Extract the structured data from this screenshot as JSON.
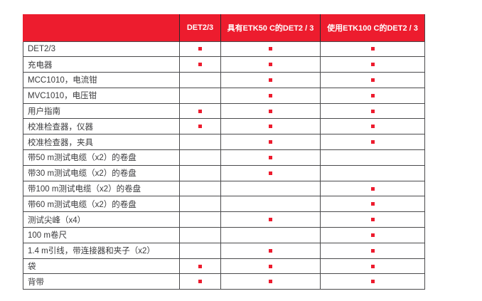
{
  "table": {
    "columns": [
      "",
      "DET2/3",
      "具有ETK50 C的DET2 / 3",
      "使用ETK100 C的DET2 / 3"
    ],
    "rows": [
      {
        "label": "DET2/3",
        "marks": [
          true,
          true,
          true
        ]
      },
      {
        "label": "充电器",
        "marks": [
          true,
          true,
          true
        ]
      },
      {
        "label": "MCC1010，电流钳",
        "marks": [
          false,
          true,
          true
        ]
      },
      {
        "label": "MVC1010，电压钳",
        "marks": [
          false,
          true,
          true
        ]
      },
      {
        "label": "用户指南",
        "marks": [
          true,
          true,
          true
        ]
      },
      {
        "label": "校准检查器，仪器",
        "marks": [
          true,
          true,
          true
        ]
      },
      {
        "label": "校准检查器，夹具",
        "marks": [
          false,
          true,
          true
        ]
      },
      {
        "label": "带50 m测试电缆（x2）的卷盘",
        "marks": [
          false,
          true,
          false
        ]
      },
      {
        "label": "带30 m测试电缆（x2）的卷盘",
        "marks": [
          false,
          true,
          false
        ]
      },
      {
        "label": "带100 m测试电缆（x2）的卷盘",
        "marks": [
          false,
          false,
          true
        ]
      },
      {
        "label": "带60 m测试电缆（x2）的卷盘",
        "marks": [
          false,
          false,
          true
        ]
      },
      {
        "label": "测试尖峰（x4）",
        "marks": [
          false,
          true,
          true
        ]
      },
      {
        "label": "100 m卷尺",
        "marks": [
          false,
          false,
          true
        ]
      },
      {
        "label": "1.4 m引线，带连接器和夹子（x2）",
        "marks": [
          false,
          true,
          true
        ]
      },
      {
        "label": "袋",
        "marks": [
          true,
          true,
          true
        ]
      },
      {
        "label": "背带",
        "marks": [
          true,
          true,
          true
        ]
      }
    ],
    "colors": {
      "header_bg": "#ED1C2E",
      "header_text": "#FFFFFF",
      "marker": "#ED1C2E",
      "border": "#4A4A4C",
      "body_text": "#3A3A3C"
    },
    "marker_meaning": "included"
  }
}
